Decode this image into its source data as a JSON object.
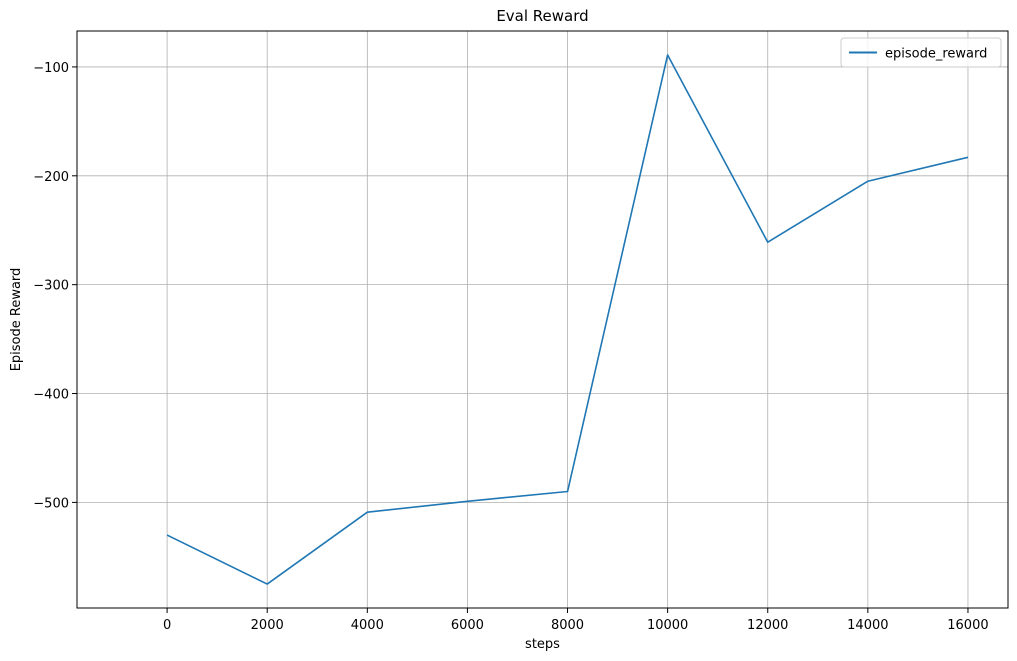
{
  "chart_data": {
    "type": "line",
    "title": "Eval Reward",
    "xlabel": "steps",
    "ylabel": "Episode Reward",
    "xlim": [
      -1800,
      16800
    ],
    "ylim": [
      -597,
      -67
    ],
    "xticks": [
      0,
      2000,
      4000,
      6000,
      8000,
      10000,
      12000,
      14000,
      16000
    ],
    "yticks": [
      -500,
      -400,
      -300,
      -200,
      -100
    ],
    "ytick_labels": [
      "−500",
      "−400",
      "−300",
      "−200",
      "−100"
    ],
    "grid": true,
    "legend_position": "top-right",
    "series": [
      {
        "name": "episode_reward",
        "color": "#1f77b4",
        "x": [
          0,
          2000,
          4000,
          6000,
          8000,
          10000,
          12000,
          14000,
          16000
        ],
        "y": [
          -530,
          -575,
          -509,
          -499,
          -490,
          -89,
          -261,
          -205,
          -183
        ]
      }
    ]
  }
}
